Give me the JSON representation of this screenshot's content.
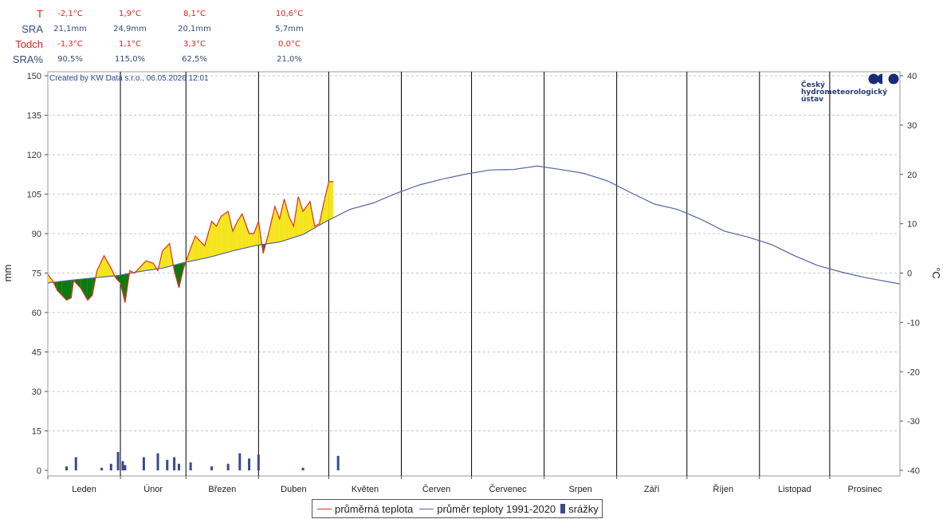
{
  "stats": {
    "rows": [
      {
        "label": "T",
        "color": "#e0201c",
        "values": [
          "-2,1°C",
          "1,9°C",
          "8,1°C",
          "10,6°C"
        ]
      },
      {
        "label": "SRA",
        "color": "#3a4a7c",
        "values": [
          "21,1mm",
          "24,9mm",
          "20,1mm",
          "5,7mm"
        ]
      },
      {
        "label": "Todch",
        "color": "#e0201c",
        "values": [
          "-1,3°C",
          "1,1°C",
          "3,3°C",
          "0,0°C"
        ]
      },
      {
        "label": "SRA%",
        "color": "#3a4a7c",
        "values": [
          "90,5%",
          "115,0%",
          "62,5%",
          "21,0%"
        ]
      }
    ]
  },
  "credit": "Created by KW Data s.r.o., 06.05.2026 12:01",
  "logo": {
    "lines": [
      "Český",
      "hydrometeorologický",
      "ústav"
    ]
  },
  "legend": {
    "temp": "průměrná teplota",
    "normal": "průměr teploty 1991-2020",
    "precip": "srážky"
  },
  "chart_data": {
    "type": "line",
    "xlabel": "",
    "ylabel_left": "mm",
    "ylabel_right": "°C",
    "y_left_range": [
      0,
      150
    ],
    "y_left_ticks": [
      0,
      15,
      30,
      45,
      60,
      75,
      90,
      105,
      120,
      135,
      150
    ],
    "y_right_range": [
      -40,
      40
    ],
    "y_right_ticks": [
      -40,
      -30,
      -20,
      -10,
      0,
      10,
      20,
      30,
      40
    ],
    "months": [
      "Leden",
      "Únor",
      "Březen",
      "Duben",
      "Květen",
      "Červen",
      "Červenec",
      "Srpen",
      "Září",
      "Říjen",
      "Listopad",
      "Prosinec"
    ],
    "grid": true,
    "colors": {
      "temp": "#e0301c",
      "normal": "#5566a0",
      "above": "#f5e51e",
      "below": "#0b7a10",
      "precip": "#3a4a8c"
    },
    "series": [
      {
        "name": "průměr teploty 1991-2020",
        "x": [
          1,
          10,
          20,
          31,
          40,
          50,
          59,
          70,
          80,
          90,
          100,
          110,
          120,
          130,
          140,
          150,
          160,
          170,
          180,
          190,
          200,
          210,
          220,
          230,
          240,
          250,
          260,
          270,
          280,
          290,
          300,
          310,
          320,
          330,
          340,
          350,
          365
        ],
        "values": [
          -2.0,
          -1.5,
          -1.0,
          -0.5,
          0.3,
          1.0,
          2.1,
          3.2,
          4.5,
          5.6,
          6.3,
          7.8,
          10.5,
          12.9,
          14.2,
          16.2,
          17.9,
          19.1,
          20.1,
          20.9,
          21.0,
          21.7,
          21.0,
          20.2,
          18.7,
          16.3,
          14.0,
          12.9,
          10.9,
          8.5,
          7.3,
          5.8,
          3.5,
          1.5,
          0.2,
          -0.9,
          -2.2
        ]
      },
      {
        "name": "průměrná teplota",
        "x": [
          1,
          3,
          5,
          7,
          9,
          11,
          12,
          15,
          18,
          20,
          22,
          25,
          28,
          30,
          32,
          34,
          36,
          38,
          41,
          43,
          46,
          48,
          50,
          53,
          55,
          57,
          59,
          62,
          64,
          66,
          68,
          71,
          73,
          75,
          78,
          80,
          82,
          84,
          87,
          89,
          91,
          93,
          95,
          98,
          100,
          102,
          104,
          106,
          108,
          110,
          113,
          115,
          117,
          119,
          121,
          123
        ],
        "values": [
          -0.3,
          -1.5,
          -3.5,
          -4.5,
          -5.5,
          -5.0,
          -1.5,
          -3.0,
          -5.5,
          -4.5,
          0.5,
          3.5,
          1.0,
          -1.0,
          -2.0,
          -6.0,
          0.5,
          0.0,
          1.5,
          2.5,
          2.0,
          0.5,
          4.5,
          6.0,
          0.5,
          -3.0,
          1.0,
          5.0,
          7.5,
          6.5,
          5.5,
          10.5,
          9.5,
          11.5,
          12.5,
          8.5,
          10.5,
          12.0,
          8.0,
          8.0,
          10.5,
          4.0,
          7.5,
          13.5,
          11.0,
          15.0,
          11.5,
          9.5,
          15.5,
          12.5,
          14.5,
          9.5,
          10.0,
          14.5,
          18.5,
          18.5
        ]
      },
      {
        "name": "srážky",
        "x": [
          9,
          13,
          24,
          28,
          31,
          33,
          34,
          42,
          48,
          52,
          55,
          57,
          62,
          71,
          78,
          83,
          87,
          91,
          110,
          125
        ],
        "values": [
          1.5,
          5.0,
          1.0,
          2.5,
          7.0,
          3.5,
          2.0,
          5.0,
          6.5,
          4.0,
          5.0,
          2.5,
          3.0,
          1.5,
          2.5,
          6.5,
          4.5,
          6.0,
          1.0,
          5.5
        ]
      }
    ]
  }
}
